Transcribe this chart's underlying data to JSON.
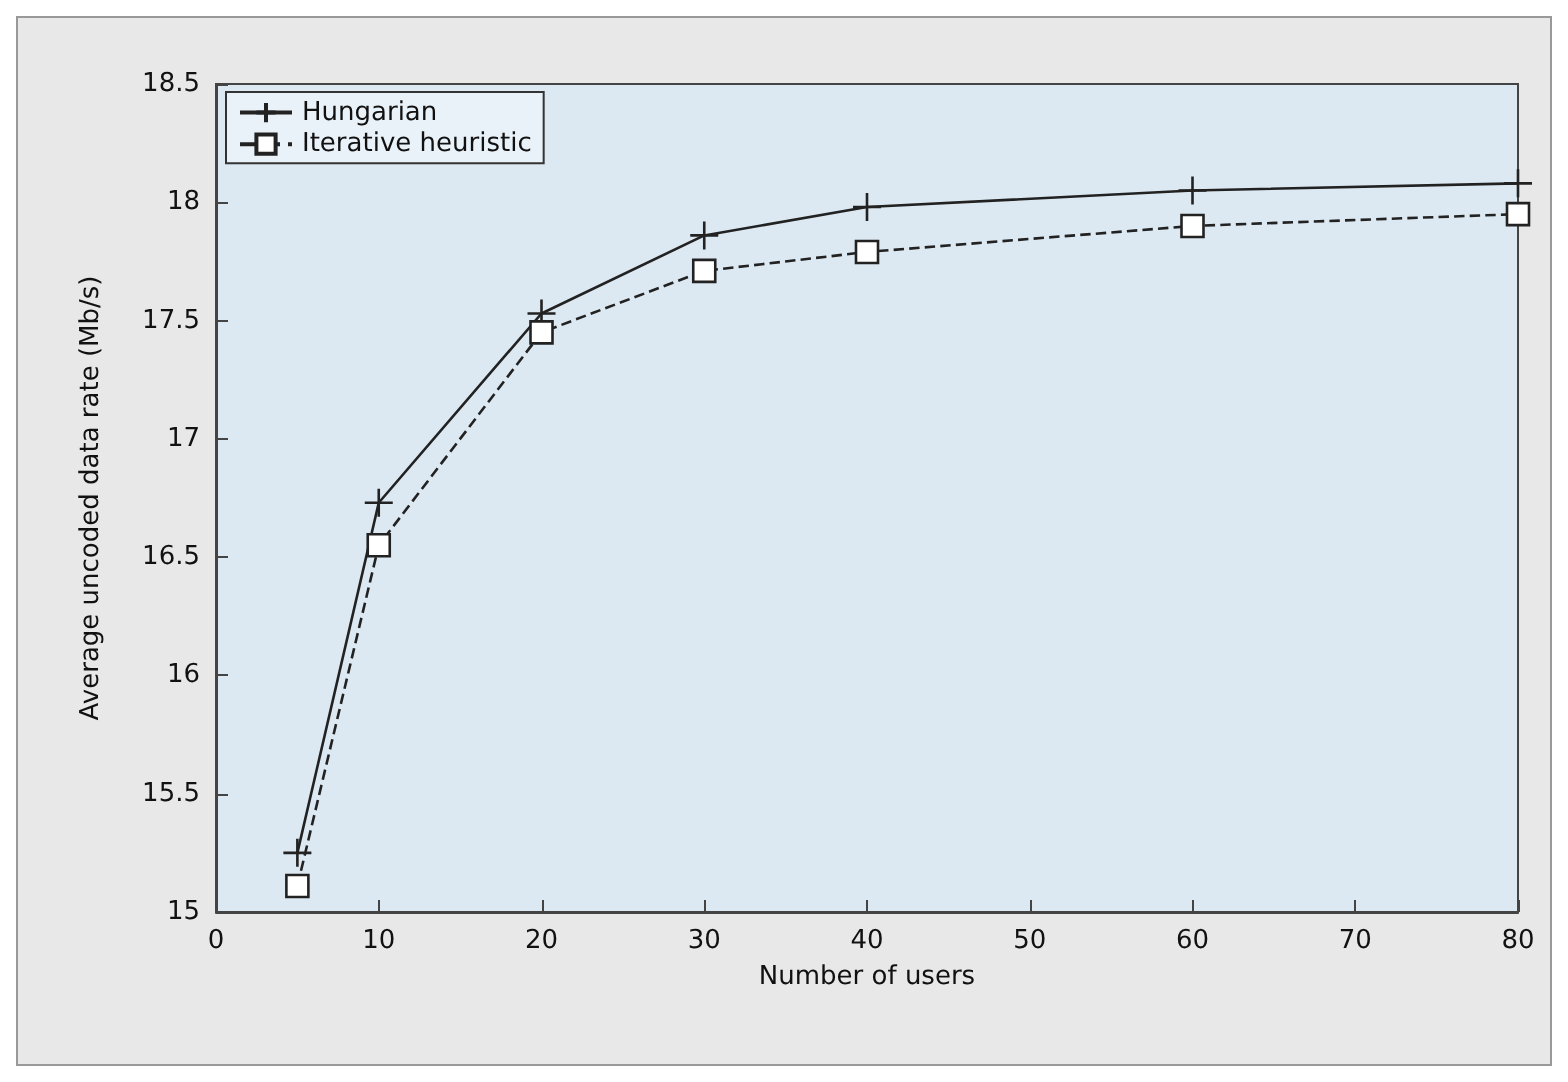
{
  "chart_data": {
    "type": "line",
    "xlabel": "Number of users",
    "ylabel": "Average uncoded data rate (Mb/s)",
    "x": [
      5,
      10,
      20,
      30,
      40,
      60,
      80
    ],
    "series": [
      {
        "name": "Hungarian",
        "color": "#222222",
        "marker": "cross",
        "line_style": "solid",
        "values": [
          15.25,
          16.73,
          17.53,
          17.86,
          17.98,
          18.05,
          18.08
        ]
      },
      {
        "name": "Iterative heuristic",
        "color": "#222222",
        "marker": "square",
        "line_style": "dashed",
        "values": [
          15.11,
          16.55,
          17.45,
          17.71,
          17.79,
          17.9,
          17.95
        ]
      }
    ],
    "xlim": [
      0,
      80
    ],
    "xticks": [
      0,
      10,
      20,
      30,
      40,
      50,
      60,
      70,
      80
    ],
    "ylim": [
      15,
      18.5
    ],
    "yticks": [
      15,
      15.5,
      16,
      16.5,
      17,
      17.5,
      18,
      18.5
    ],
    "grid": false,
    "legend": "top left"
  }
}
